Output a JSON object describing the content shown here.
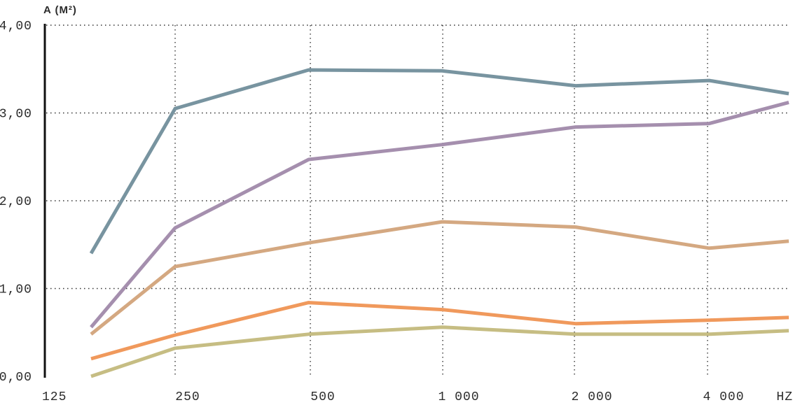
{
  "chart_data": {
    "type": "line",
    "ylabel": "A (M²)",
    "xlabel": "HZ",
    "x_tick_labels": [
      "125",
      "250",
      "500",
      "1 000",
      "2 000",
      "4 000"
    ],
    "y_tick_labels": [
      "0,00",
      "1,00",
      "2,00",
      "3,00",
      "4,00"
    ],
    "ylim": [
      0,
      4
    ],
    "grid": true,
    "x_scale": "log2 (octave bands)",
    "x_points": [
      125,
      250,
      500,
      1000,
      2000,
      4000,
      8000
    ],
    "series": [
      {
        "color": "#7894a0",
        "values": [
          1.4,
          3.05,
          3.49,
          3.48,
          3.31,
          3.37,
          3.22
        ]
      },
      {
        "color": "#a58fae",
        "values": [
          0.56,
          1.69,
          2.47,
          2.64,
          2.84,
          2.88,
          3.12
        ]
      },
      {
        "color": "#d4a881",
        "values": [
          0.48,
          1.25,
          1.52,
          1.76,
          1.7,
          1.46,
          1.54
        ]
      },
      {
        "color": "#f0995c",
        "values": [
          0.2,
          0.47,
          0.84,
          0.76,
          0.6,
          0.64,
          0.67
        ]
      },
      {
        "color": "#c6bd83",
        "values": [
          0.0,
          0.32,
          0.48,
          0.56,
          0.48,
          0.48,
          0.52
        ]
      }
    ]
  }
}
